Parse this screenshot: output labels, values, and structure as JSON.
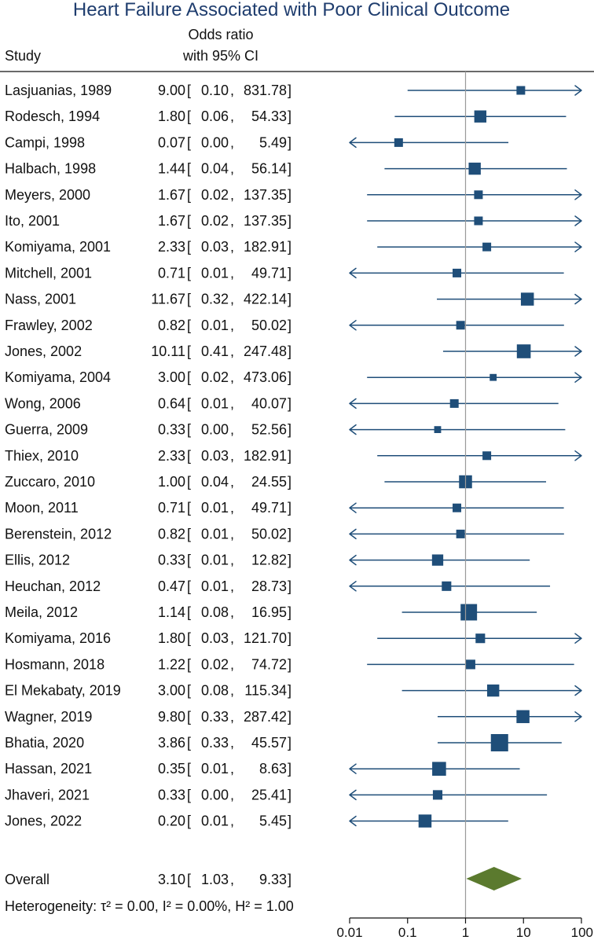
{
  "chart_data": {
    "type": "forest",
    "title": "Heart Failure Associated with Poor Clinical Outcome",
    "header": {
      "study": "Study",
      "effect_line1": "Odds ratio",
      "effect_line2": "with 95% CI"
    },
    "x_scale": "log",
    "xlim": [
      0.01,
      100
    ],
    "reference_value": 1,
    "ticks": [
      {
        "value": 0.01,
        "label": "0.01"
      },
      {
        "value": 0.1,
        "label": "0.1"
      },
      {
        "value": 1,
        "label": "1"
      },
      {
        "value": 10,
        "label": "10"
      },
      {
        "value": 100,
        "label": "100"
      }
    ],
    "studies": [
      {
        "study": "Lasjuanias, 1989",
        "or": 9.0,
        "lo": 0.1,
        "hi": 831.78,
        "or_text": "9.00",
        "lo_text": "0.10",
        "hi_text": "831.78",
        "weight": 1.0
      },
      {
        "study": "Rodesch, 1994",
        "or": 1.8,
        "lo": 0.06,
        "hi": 54.33,
        "or_text": "1.80",
        "lo_text": "0.06",
        "hi_text": "54.33",
        "weight": 1.4
      },
      {
        "study": "Campi, 1998",
        "or": 0.07,
        "lo": 0.0,
        "hi": 5.49,
        "or_text": "0.07",
        "lo_text": "0.00",
        "hi_text": "5.49",
        "weight": 1.0
      },
      {
        "study": "Halbach, 1998",
        "or": 1.44,
        "lo": 0.04,
        "hi": 56.14,
        "or_text": "1.44",
        "lo_text": "0.04",
        "hi_text": "56.14",
        "weight": 1.4
      },
      {
        "study": "Meyers, 2000",
        "or": 1.67,
        "lo": 0.02,
        "hi": 137.35,
        "or_text": "1.67",
        "lo_text": "0.02",
        "hi_text": "137.35",
        "weight": 1.0
      },
      {
        "study": "Ito, 2001",
        "or": 1.67,
        "lo": 0.02,
        "hi": 137.35,
        "or_text": "1.67",
        "lo_text": "0.02",
        "hi_text": "137.35",
        "weight": 1.0
      },
      {
        "study": "Komiyama, 2001",
        "or": 2.33,
        "lo": 0.03,
        "hi": 182.91,
        "or_text": "2.33",
        "lo_text": "0.03",
        "hi_text": "182.91",
        "weight": 1.0
      },
      {
        "study": "Mitchell, 2001",
        "or": 0.71,
        "lo": 0.01,
        "hi": 49.71,
        "or_text": "0.71",
        "lo_text": "0.01",
        "hi_text": "49.71",
        "weight": 1.0
      },
      {
        "study": "Nass, 2001",
        "or": 11.67,
        "lo": 0.32,
        "hi": 422.14,
        "or_text": "11.67",
        "lo_text": "0.32",
        "hi_text": "422.14",
        "weight": 1.5
      },
      {
        "study": "Frawley, 2002",
        "or": 0.82,
        "lo": 0.01,
        "hi": 50.02,
        "or_text": "0.82",
        "lo_text": "0.01",
        "hi_text": "50.02",
        "weight": 1.0
      },
      {
        "study": "Jones, 2002",
        "or": 10.11,
        "lo": 0.41,
        "hi": 247.48,
        "or_text": "10.11",
        "lo_text": "0.41",
        "hi_text": "247.48",
        "weight": 1.6
      },
      {
        "study": "Komiyama, 2004",
        "or": 3.0,
        "lo": 0.02,
        "hi": 473.06,
        "or_text": "3.00",
        "lo_text": "0.02",
        "hi_text": "473.06",
        "weight": 0.8
      },
      {
        "study": "Wong, 2006",
        "or": 0.64,
        "lo": 0.01,
        "hi": 40.07,
        "or_text": "0.64",
        "lo_text": "0.01",
        "hi_text": "40.07",
        "weight": 1.0
      },
      {
        "study": "Guerra, 2009",
        "or": 0.33,
        "lo": 0.0,
        "hi": 52.56,
        "or_text": "0.33",
        "lo_text": "0.00",
        "hi_text": "52.56",
        "weight": 0.8
      },
      {
        "study": "Thiex, 2010",
        "or": 2.33,
        "lo": 0.03,
        "hi": 182.91,
        "or_text": "2.33",
        "lo_text": "0.03",
        "hi_text": "182.91",
        "weight": 1.0
      },
      {
        "study": "Zuccaro, 2010",
        "or": 1.0,
        "lo": 0.04,
        "hi": 24.55,
        "or_text": "1.00",
        "lo_text": "0.04",
        "hi_text": "24.55",
        "weight": 1.5
      },
      {
        "study": "Moon, 2011",
        "or": 0.71,
        "lo": 0.01,
        "hi": 49.71,
        "or_text": "0.71",
        "lo_text": "0.01",
        "hi_text": "49.71",
        "weight": 1.0
      },
      {
        "study": "Berenstein, 2012",
        "or": 0.82,
        "lo": 0.01,
        "hi": 50.02,
        "or_text": "0.82",
        "lo_text": "0.01",
        "hi_text": "50.02",
        "weight": 1.0
      },
      {
        "study": "Ellis, 2012",
        "or": 0.33,
        "lo": 0.01,
        "hi": 12.82,
        "or_text": "0.33",
        "lo_text": "0.01",
        "hi_text": "12.82",
        "weight": 1.3
      },
      {
        "study": "Heuchan, 2012",
        "or": 0.47,
        "lo": 0.01,
        "hi": 28.73,
        "or_text": "0.47",
        "lo_text": "0.01",
        "hi_text": "28.73",
        "weight": 1.1
      },
      {
        "study": "Meila, 2012",
        "or": 1.14,
        "lo": 0.08,
        "hi": 16.95,
        "or_text": "1.14",
        "lo_text": "0.08",
        "hi_text": "16.95",
        "weight": 1.9
      },
      {
        "study": "Komiyama, 2016",
        "or": 1.8,
        "lo": 0.03,
        "hi": 121.7,
        "or_text": "1.80",
        "lo_text": "0.03",
        "hi_text": "121.70",
        "weight": 1.1
      },
      {
        "study": "Hosmann, 2018",
        "or": 1.22,
        "lo": 0.02,
        "hi": 74.72,
        "or_text": "1.22",
        "lo_text": "0.02",
        "hi_text": "74.72",
        "weight": 1.1
      },
      {
        "study": "El Mekabaty, 2019",
        "or": 3.0,
        "lo": 0.08,
        "hi": 115.34,
        "or_text": "3.00",
        "lo_text": "0.08",
        "hi_text": "115.34",
        "weight": 1.4
      },
      {
        "study": "Wagner, 2019",
        "or": 9.8,
        "lo": 0.33,
        "hi": 287.42,
        "or_text": "9.80",
        "lo_text": "0.33",
        "hi_text": "287.42",
        "weight": 1.5
      },
      {
        "study": "Bhatia, 2020",
        "or": 3.86,
        "lo": 0.33,
        "hi": 45.57,
        "or_text": "3.86",
        "lo_text": "0.33",
        "hi_text": "45.57",
        "weight": 2.0
      },
      {
        "study": "Hassan, 2021",
        "or": 0.35,
        "lo": 0.01,
        "hi": 8.63,
        "or_text": "0.35",
        "lo_text": "0.01",
        "hi_text": "8.63",
        "weight": 1.6
      },
      {
        "study": "Jhaveri, 2021",
        "or": 0.33,
        "lo": 0.0,
        "hi": 25.41,
        "or_text": "0.33",
        "lo_text": "0.00",
        "hi_text": "25.41",
        "weight": 1.1
      },
      {
        "study": "Jones, 2022",
        "or": 0.2,
        "lo": 0.01,
        "hi": 5.45,
        "or_text": "0.20",
        "lo_text": "0.01",
        "hi_text": "5.45",
        "weight": 1.5
      }
    ],
    "overall": {
      "label": "Overall",
      "or": 3.1,
      "lo": 1.03,
      "hi": 9.33,
      "or_text": "3.10",
      "lo_text": "1.03",
      "hi_text": "9.33"
    },
    "heterogeneity_text": "Heterogeneity: τ² = 0.00, I² = 0.00%, H² = 1.00",
    "colors": {
      "marker": "#1f4e79",
      "diamond": "#5b7a2e",
      "title": "#1f3d6e",
      "reference_line": "#9a9a9a"
    }
  }
}
